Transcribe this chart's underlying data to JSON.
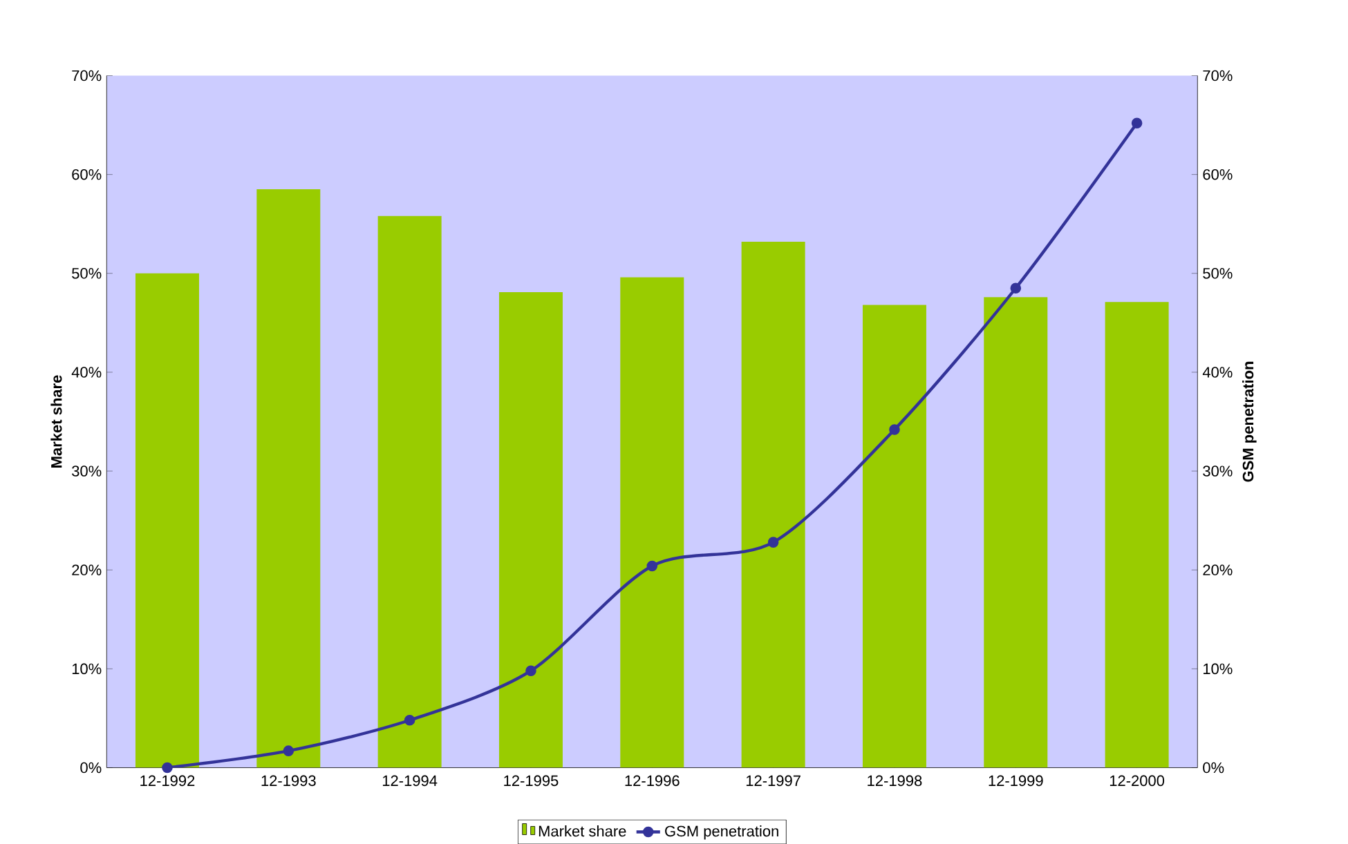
{
  "chart_data": {
    "type": "bar",
    "categories": [
      "12-1992",
      "12-1993",
      "12-1994",
      "12-1995",
      "12-1996",
      "12-1997",
      "12-1998",
      "12-1999",
      "12-2000"
    ],
    "ylabel": "Market share",
    "y2label": "GSM penetration",
    "ylim": [
      0,
      70
    ],
    "yticks": [
      {
        "value": 0,
        "label": "0%"
      },
      {
        "value": 10,
        "label": "10%"
      },
      {
        "value": 20,
        "label": "20%"
      },
      {
        "value": 30,
        "label": "30%"
      },
      {
        "value": 40,
        "label": "40%"
      },
      {
        "value": 50,
        "label": "50%"
      },
      {
        "value": 60,
        "label": "60%"
      },
      {
        "value": 70,
        "label": "70%"
      }
    ],
    "y2lim": [
      0,
      70
    ],
    "y2ticks": [
      {
        "value": 0,
        "label": "0%"
      },
      {
        "value": 10,
        "label": "10%"
      },
      {
        "value": 20,
        "label": "20%"
      },
      {
        "value": 30,
        "label": "30%"
      },
      {
        "value": 40,
        "label": "40%"
      },
      {
        "value": 50,
        "label": "50%"
      },
      {
        "value": 60,
        "label": "60%"
      },
      {
        "value": 70,
        "label": "70%"
      }
    ],
    "legend": "bottom",
    "series": [
      {
        "name": "Market share",
        "color": "#99cc00",
        "values": [
          50,
          58.5,
          55.8,
          48.1,
          49.6,
          53.2,
          46.8,
          47.6,
          47.1
        ]
      },
      {
        "name": "GSM penetration",
        "type": "line",
        "axis": "y2",
        "color": "#333399",
        "marker": "circle",
        "line_style": "solid",
        "values": [
          0,
          1.7,
          4.8,
          9.8,
          20.4,
          22.8,
          34.2,
          48.5,
          65.2
        ]
      }
    ]
  }
}
